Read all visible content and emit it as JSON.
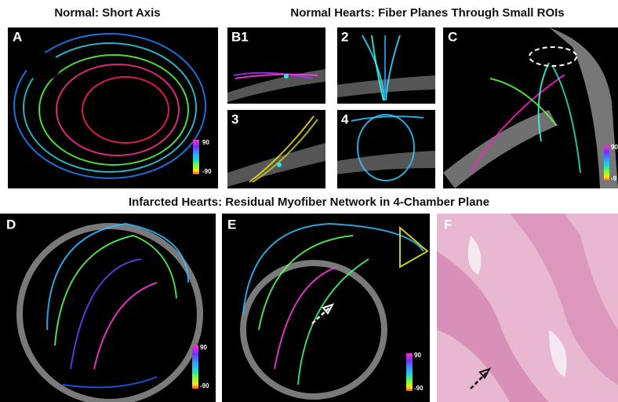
{
  "headings": {
    "normal": "Normal: Short Axis",
    "fiber_planes": "Normal Hearts: Fiber Planes Through Small ROIs",
    "infarcted": "Infarcted Hearts: Residual Myofiber Network in 4-Chamber Plane"
  },
  "panels": [
    {
      "label": "A",
      "colorbar": [
        "90",
        "-90"
      ]
    },
    {
      "label": "B1"
    },
    {
      "label": "2"
    },
    {
      "label": "3"
    },
    {
      "label": "4"
    },
    {
      "label": "C",
      "colorbar": [
        "90",
        "-9"
      ]
    },
    {
      "label": "D",
      "colorbar": [
        "90",
        "-90"
      ]
    },
    {
      "label": "E",
      "colorbar": [
        "90",
        "-90"
      ]
    },
    {
      "label": "F"
    }
  ]
}
